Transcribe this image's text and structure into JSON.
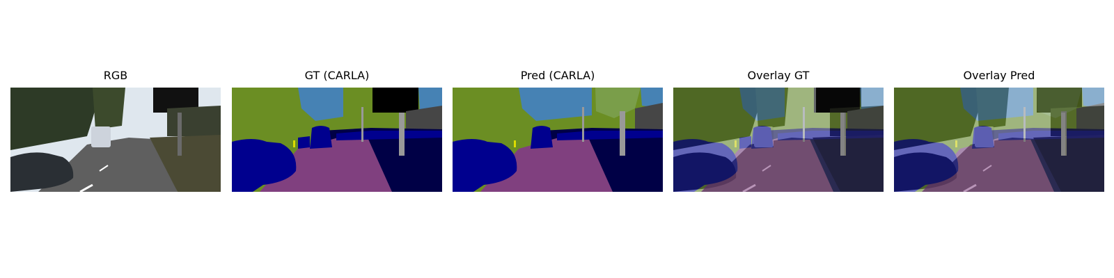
{
  "panels": [
    {
      "title": "RGB",
      "image": "rgb-street-scene"
    },
    {
      "title": "GT (CARLA)",
      "image": "ground-truth-segmentation"
    },
    {
      "title": "Pred (CARLA)",
      "image": "predicted-segmentation"
    },
    {
      "title": "Overlay GT",
      "image": "ground-truth-overlay"
    },
    {
      "title": "Overlay Pred",
      "image": "prediction-overlay"
    }
  ],
  "colors": {
    "vegetation": "#6b8e23",
    "sky": "#4682b4",
    "road": "#80407f",
    "sidewalk": "#000046",
    "vehicle": "#00008e",
    "pole": "#999999",
    "building": "#464646",
    "sign": "#dcdc00"
  }
}
